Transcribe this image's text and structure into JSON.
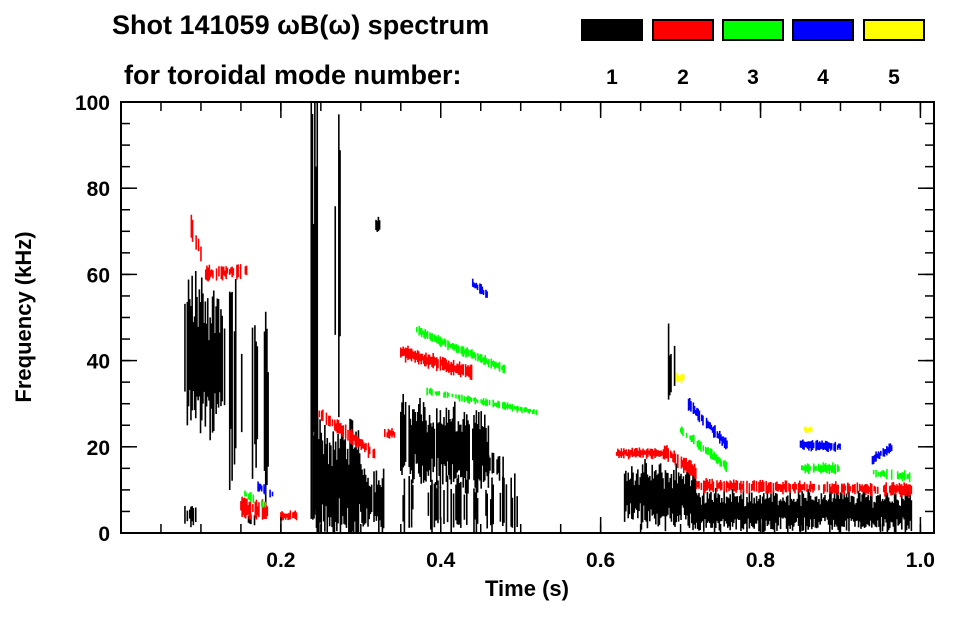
{
  "chart_data": {
    "type": "heatmap",
    "title_line1": "Shot 141059 ωB(ω) spectrum",
    "title_line2": "for toroidal mode number:",
    "xlabel": "Time (s)",
    "ylabel": "Frequency (kHz)",
    "xlim": [
      0.0,
      1.017
    ],
    "ylim": [
      0,
      100
    ],
    "x_ticks": [
      {
        "v": 0.2,
        "label": "0.2"
      },
      {
        "v": 0.4,
        "label": "0.4"
      },
      {
        "v": 0.6,
        "label": "0.6"
      },
      {
        "v": 0.8,
        "label": "0.8"
      },
      {
        "v": 1.0,
        "label": "1.0"
      }
    ],
    "x_minor_step": 0.05,
    "y_ticks": [
      {
        "v": 0,
        "label": "0"
      },
      {
        "v": 20,
        "label": "20"
      },
      {
        "v": 40,
        "label": "40"
      },
      {
        "v": 60,
        "label": "60"
      },
      {
        "v": 80,
        "label": "80"
      },
      {
        "v": 100,
        "label": "100"
      }
    ],
    "y_minor_step": 5,
    "grid": false,
    "legend": {
      "placement": "top-right",
      "entries": [
        {
          "label": "1",
          "color": "#000000"
        },
        {
          "label": "2",
          "color": "#ff0000"
        },
        {
          "label": "3",
          "color": "#00ff00"
        },
        {
          "label": "4",
          "color": "#0000ff"
        },
        {
          "label": "5",
          "color": "#ffff00"
        }
      ]
    },
    "features": [
      {
        "mode": 1,
        "t": [
          0.08,
          0.13
        ],
        "f": [
          42,
          38
        ],
        "width": 30,
        "density": 0.95
      },
      {
        "mode": 1,
        "t": [
          0.13,
          0.185
        ],
        "f": [
          38,
          30
        ],
        "width": 40,
        "density": 0.45
      },
      {
        "mode": 1,
        "t": [
          0.08,
          0.095
        ],
        "f": [
          4,
          4
        ],
        "width": 4,
        "density": 0.7
      },
      {
        "mode": 1,
        "t": [
          0.155,
          0.17
        ],
        "f": [
          3,
          3
        ],
        "width": 3,
        "density": 0.5
      },
      {
        "mode": 1,
        "t": [
          0.238,
          0.246
        ],
        "f": [
          50,
          50
        ],
        "width": 100,
        "density": 1.0
      },
      {
        "mode": 1,
        "t": [
          0.24,
          0.3
        ],
        "f": [
          12,
          10
        ],
        "width": 24,
        "density": 1.0
      },
      {
        "mode": 1,
        "t": [
          0.3,
          0.33
        ],
        "f": [
          9,
          7
        ],
        "width": 12,
        "density": 0.9
      },
      {
        "mode": 1,
        "t": [
          0.268,
          0.275
        ],
        "f": [
          65,
          65
        ],
        "width": 60,
        "density": 0.5
      },
      {
        "mode": 1,
        "t": [
          0.319,
          0.325
        ],
        "f": [
          71.5,
          71.5
        ],
        "width": 3,
        "density": 1.0
      },
      {
        "mode": 1,
        "t": [
          0.35,
          0.46
        ],
        "f": [
          22,
          18
        ],
        "width": 16,
        "density": 0.95
      },
      {
        "mode": 1,
        "t": [
          0.46,
          0.48
        ],
        "f": [
          16,
          15
        ],
        "width": 5,
        "density": 0.7
      },
      {
        "mode": 1,
        "t": [
          0.35,
          0.5
        ],
        "f": [
          7,
          6
        ],
        "width": 12,
        "density": 0.35
      },
      {
        "mode": 1,
        "t": [
          0.63,
          0.72
        ],
        "f": [
          9,
          8
        ],
        "width": 12,
        "density": 1.0
      },
      {
        "mode": 1,
        "t": [
          0.72,
          0.99
        ],
        "f": [
          5,
          5
        ],
        "width": 8,
        "density": 1.0
      },
      {
        "mode": 1,
        "t": [
          0.685,
          0.695
        ],
        "f": [
          38,
          38
        ],
        "width": 16,
        "density": 0.6
      },
      {
        "mode": 2,
        "t": [
          0.085,
          0.11
        ],
        "f": [
          72,
          60
        ],
        "width": 5,
        "density": 0.6
      },
      {
        "mode": 2,
        "t": [
          0.1,
          0.16
        ],
        "f": [
          60,
          61
        ],
        "width": 3,
        "density": 0.7
      },
      {
        "mode": 2,
        "t": [
          0.15,
          0.185
        ],
        "f": [
          6,
          5
        ],
        "width": 4,
        "density": 0.8
      },
      {
        "mode": 2,
        "t": [
          0.2,
          0.22
        ],
        "f": [
          4,
          4
        ],
        "width": 2,
        "density": 0.8
      },
      {
        "mode": 2,
        "t": [
          0.245,
          0.32
        ],
        "f": [
          28,
          18
        ],
        "width": 3,
        "density": 0.8
      },
      {
        "mode": 2,
        "t": [
          0.33,
          0.345
        ],
        "f": [
          23,
          23
        ],
        "width": 2,
        "density": 0.6
      },
      {
        "mode": 2,
        "t": [
          0.35,
          0.44
        ],
        "f": [
          42,
          37
        ],
        "width": 3,
        "density": 0.95
      },
      {
        "mode": 2,
        "t": [
          0.62,
          0.68
        ],
        "f": [
          18.5,
          18.5
        ],
        "width": 2,
        "density": 1.0
      },
      {
        "mode": 2,
        "t": [
          0.68,
          0.72
        ],
        "f": [
          19,
          14
        ],
        "width": 3,
        "density": 0.9
      },
      {
        "mode": 2,
        "t": [
          0.72,
          0.99
        ],
        "f": [
          11,
          10
        ],
        "width": 2.5,
        "density": 0.85
      },
      {
        "mode": 3,
        "t": [
          0.37,
          0.48
        ],
        "f": [
          47,
          38
        ],
        "width": 2,
        "density": 0.8
      },
      {
        "mode": 3,
        "t": [
          0.38,
          0.52
        ],
        "f": [
          33,
          28
        ],
        "width": 1.5,
        "density": 0.6
      },
      {
        "mode": 3,
        "t": [
          0.155,
          0.185
        ],
        "f": [
          9,
          6
        ],
        "width": 2,
        "density": 0.6
      },
      {
        "mode": 3,
        "t": [
          0.7,
          0.76
        ],
        "f": [
          24,
          15
        ],
        "width": 2,
        "density": 0.7
      },
      {
        "mode": 3,
        "t": [
          0.85,
          0.9
        ],
        "f": [
          15,
          15
        ],
        "width": 2,
        "density": 0.8
      },
      {
        "mode": 3,
        "t": [
          0.94,
          0.99
        ],
        "f": [
          14,
          13
        ],
        "width": 2,
        "density": 0.7
      },
      {
        "mode": 4,
        "t": [
          0.44,
          0.46
        ],
        "f": [
          58,
          55
        ],
        "width": 2,
        "density": 0.8
      },
      {
        "mode": 4,
        "t": [
          0.71,
          0.76
        ],
        "f": [
          30,
          20
        ],
        "width": 2.5,
        "density": 0.85
      },
      {
        "mode": 4,
        "t": [
          0.85,
          0.9
        ],
        "f": [
          20.5,
          20
        ],
        "width": 2,
        "density": 0.9
      },
      {
        "mode": 4,
        "t": [
          0.94,
          0.965
        ],
        "f": [
          17,
          20
        ],
        "width": 2,
        "density": 0.9
      },
      {
        "mode": 4,
        "t": [
          0.17,
          0.19
        ],
        "f": [
          11,
          9
        ],
        "width": 2,
        "density": 0.6
      },
      {
        "mode": 5,
        "t": [
          0.695,
          0.705
        ],
        "f": [
          36,
          36
        ],
        "width": 2,
        "density": 0.9
      },
      {
        "mode": 5,
        "t": [
          0.855,
          0.865
        ],
        "f": [
          24,
          24
        ],
        "width": 1.5,
        "density": 0.9
      }
    ]
  }
}
